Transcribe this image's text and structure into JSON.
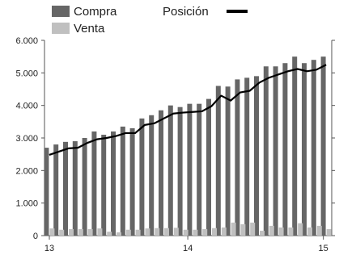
{
  "chart_data": {
    "type": "bar",
    "title": "",
    "xlabel": "",
    "ylabel": "",
    "ylim": [
      0,
      6000
    ],
    "yticks": [
      0,
      1000,
      2000,
      3000,
      4000,
      5000,
      6000
    ],
    "ytick_labels": [
      "0",
      "1.000",
      "2.000",
      "3.000",
      "4.000",
      "5.000",
      "6.000"
    ],
    "xtick_labels": [
      {
        "label": "13",
        "index": 0
      },
      {
        "label": "14",
        "index": 14.5
      },
      {
        "label": "15",
        "index": 28.7
      }
    ],
    "grid": false,
    "legend": {
      "placement": "top",
      "entries": [
        {
          "label": "Compra",
          "series": "Compra"
        },
        {
          "label": "Venta",
          "series": "Venta"
        },
        {
          "label": "Posición",
          "series": "Posición"
        }
      ]
    },
    "colors": {
      "Compra": "#666666",
      "Venta": "#c0c0c0",
      "Posición": "#000000"
    },
    "series": [
      {
        "name": "Compra",
        "type": "bar",
        "values": [
          2700,
          2800,
          2880,
          2900,
          3000,
          3200,
          3100,
          3200,
          3350,
          3300,
          3600,
          3700,
          3850,
          4000,
          3950,
          4050,
          4050,
          4200,
          4600,
          4580,
          4800,
          4850,
          4900,
          5200,
          5200,
          5300,
          5500,
          5300,
          5400,
          5500
        ]
      },
      {
        "name": "Venta",
        "type": "bar",
        "values": [
          220,
          180,
          200,
          200,
          200,
          220,
          120,
          100,
          180,
          180,
          220,
          230,
          230,
          240,
          180,
          180,
          200,
          230,
          250,
          400,
          350,
          400,
          150,
          300,
          250,
          250,
          380,
          250,
          300,
          200
        ]
      },
      {
        "name": "Posición",
        "type": "line",
        "values": [
          2480,
          2580,
          2680,
          2700,
          2850,
          2960,
          3000,
          3060,
          3150,
          3150,
          3400,
          3450,
          3600,
          3750,
          3780,
          3800,
          3820,
          3980,
          4300,
          4150,
          4400,
          4450,
          4700,
          4850,
          4950,
          5050,
          5120,
          5050,
          5100,
          5250
        ]
      }
    ]
  }
}
